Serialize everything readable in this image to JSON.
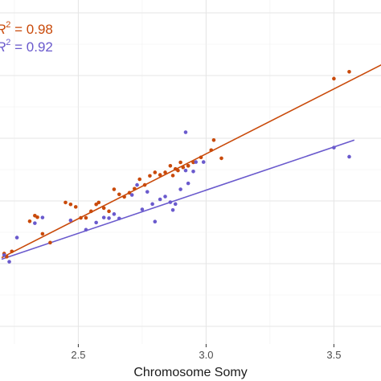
{
  "chart_data": {
    "type": "scatter",
    "title": "",
    "xlabel": "Chromosome Somy",
    "ylabel": "",
    "xlim": [
      2.2,
      3.7
    ],
    "ylim": [
      0,
      1
    ],
    "x_ticks": [
      {
        "value": 2.5,
        "label": "2.5"
      },
      {
        "value": 3.0,
        "label": "3.0"
      },
      {
        "value": 3.5,
        "label": "3.5"
      }
    ],
    "grid": true,
    "annotations": [
      {
        "text_prefix": "R",
        "sup": "2",
        "text_suffix": " = 0.98",
        "color": "#c94a0a"
      },
      {
        "text_prefix": "R",
        "sup": "2",
        "text_suffix": " = 0.92",
        "color": "#6a5acd"
      }
    ],
    "series": [
      {
        "color": "#c94a0a",
        "fit": {
          "x": [
            2.2,
            3.7
          ],
          "y": [
            0.255,
            0.876
          ]
        },
        "points": [
          [
            2.21,
            0.268
          ],
          [
            2.22,
            0.258
          ],
          [
            2.24,
            0.275
          ],
          [
            2.31,
            0.371
          ],
          [
            2.33,
            0.389
          ],
          [
            2.34,
            0.384
          ],
          [
            2.36,
            0.331
          ],
          [
            2.39,
            0.303
          ],
          [
            2.45,
            0.431
          ],
          [
            2.47,
            0.425
          ],
          [
            2.49,
            0.417
          ],
          [
            2.51,
            0.382
          ],
          [
            2.53,
            0.382
          ],
          [
            2.55,
            0.403
          ],
          [
            2.57,
            0.425
          ],
          [
            2.58,
            0.431
          ],
          [
            2.6,
            0.413
          ],
          [
            2.62,
            0.403
          ],
          [
            2.64,
            0.473
          ],
          [
            2.66,
            0.457
          ],
          [
            2.68,
            0.449
          ],
          [
            2.7,
            0.462
          ],
          [
            2.72,
            0.475
          ],
          [
            2.74,
            0.505
          ],
          [
            2.76,
            0.487
          ],
          [
            2.78,
            0.516
          ],
          [
            2.8,
            0.527
          ],
          [
            2.82,
            0.519
          ],
          [
            2.84,
            0.527
          ],
          [
            2.86,
            0.548
          ],
          [
            2.87,
            0.517
          ],
          [
            2.88,
            0.538
          ],
          [
            2.9,
            0.559
          ],
          [
            2.91,
            0.543
          ],
          [
            2.93,
            0.548
          ],
          [
            2.95,
            0.559
          ],
          [
            2.98,
            0.575
          ],
          [
            3.02,
            0.598
          ],
          [
            3.03,
            0.63
          ],
          [
            3.06,
            0.572
          ],
          [
            3.5,
            0.826
          ],
          [
            3.56,
            0.848
          ],
          [
            2.93,
            0.548
          ],
          [
            2.89,
            0.533
          ]
        ]
      },
      {
        "color": "#6a5acd",
        "fit": {
          "x": [
            2.2,
            3.58
          ],
          "y": [
            0.25,
            0.63
          ]
        },
        "points": [
          [
            2.21,
            0.263
          ],
          [
            2.23,
            0.242
          ],
          [
            2.26,
            0.319
          ],
          [
            2.33,
            0.365
          ],
          [
            2.36,
            0.383
          ],
          [
            2.47,
            0.374
          ],
          [
            2.53,
            0.344
          ],
          [
            2.57,
            0.367
          ],
          [
            2.6,
            0.383
          ],
          [
            2.62,
            0.381
          ],
          [
            2.64,
            0.394
          ],
          [
            2.66,
            0.38
          ],
          [
            2.71,
            0.455
          ],
          [
            2.75,
            0.409
          ],
          [
            2.79,
            0.426
          ],
          [
            2.8,
            0.37
          ],
          [
            2.82,
            0.441
          ],
          [
            2.84,
            0.45
          ],
          [
            2.86,
            0.432
          ],
          [
            2.87,
            0.407
          ],
          [
            2.88,
            0.426
          ],
          [
            2.9,
            0.473
          ],
          [
            2.92,
            0.533
          ],
          [
            2.93,
            0.492
          ],
          [
            2.95,
            0.53
          ],
          [
            2.96,
            0.56
          ],
          [
            2.99,
            0.56
          ],
          [
            2.92,
            0.655
          ],
          [
            3.5,
            0.606
          ],
          [
            3.56,
            0.577
          ],
          [
            2.73,
            0.487
          ],
          [
            2.77,
            0.465
          ]
        ]
      }
    ]
  }
}
